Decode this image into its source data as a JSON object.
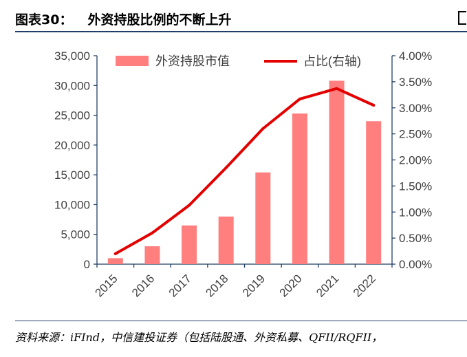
{
  "header": {
    "figure_label": "图表30：",
    "title": "外资持股比例的不断上升",
    "source": "资料来源：iFInd，中信建投证券（包括陆股通、外资私募、QFII/RQFII，"
  },
  "colors": {
    "bar": "#ff7f7f",
    "line": "#e30000",
    "axis": "#1f3f66",
    "text": "#404040"
  },
  "chart_data": {
    "type": "bar+line",
    "categories": [
      "2015",
      "2016",
      "2017",
      "2018",
      "2019",
      "2020",
      "2021",
      "2022"
    ],
    "series": [
      {
        "name": "外资持股市值",
        "type": "bar",
        "axis": "left",
        "values": [
          1000,
          3000,
          6500,
          8000,
          15400,
          25300,
          30800,
          24000
        ]
      },
      {
        "name": "占比(右轴)",
        "type": "line",
        "axis": "right",
        "values": [
          0.2,
          0.6,
          1.13,
          1.85,
          2.6,
          3.17,
          3.37,
          3.05
        ]
      }
    ],
    "y_left": {
      "min": 0,
      "max": 35000,
      "ticks": [
        "0",
        "5,000",
        "10,000",
        "15,000",
        "20,000",
        "25,000",
        "30,000",
        "35,000"
      ]
    },
    "y_right": {
      "min": 0,
      "max": 4,
      "ticks": [
        "0.00%",
        "0.50%",
        "1.00%",
        "1.50%",
        "2.00%",
        "2.50%",
        "3.00%",
        "3.50%",
        "4.00%"
      ]
    },
    "legend": {
      "position": "top",
      "entries": [
        "外资持股市值",
        "占比(右轴)"
      ]
    }
  }
}
